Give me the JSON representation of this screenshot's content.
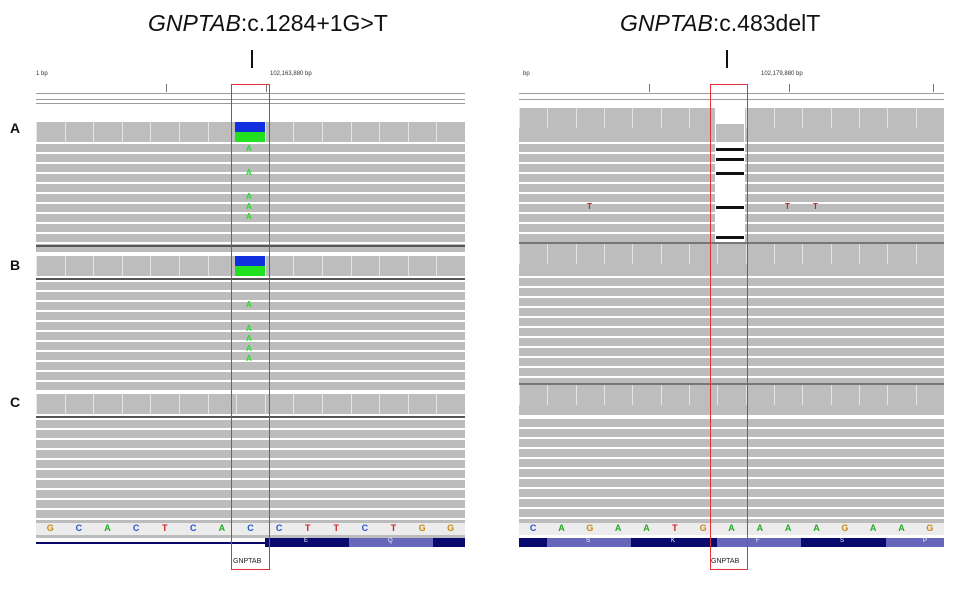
{
  "titles": {
    "left": {
      "gene": "GNPTAB",
      "variant": ":c.1284+1G>T"
    },
    "right": {
      "gene": "GNPTAB",
      "variant": ":c.483delT"
    }
  },
  "row_labels": [
    "A",
    "B",
    "C"
  ],
  "left_panel": {
    "ruler_left": "1 bp",
    "ruler_center": "102,163,880 bp",
    "sequence": [
      "G",
      "C",
      "A",
      "C",
      "T",
      "C",
      "A",
      "C",
      "C",
      "T",
      "T",
      "C",
      "T",
      "G",
      "G"
    ],
    "amino_acids": [
      "E",
      "Q"
    ],
    "gene_label": "GNPTAB",
    "read_mismatch": "A"
  },
  "right_panel": {
    "ruler_left": "bp",
    "ruler_center": "102,179,880 bp",
    "sequence": [
      "C",
      "A",
      "G",
      "A",
      "A",
      "T",
      "G",
      "A",
      "A",
      "A",
      "A",
      "G",
      "A",
      "A",
      "G"
    ],
    "amino_acids": [
      "S",
      "K",
      "F",
      "S",
      "P"
    ],
    "gene_label": "GNPTAB",
    "read_mismatch": "T"
  },
  "colors": {
    "A": "#22aa22",
    "C": "#2255cc",
    "G": "#cc8811",
    "T": "#cc2222",
    "highlight": "#e0303a",
    "ins_blue": "#1030e0",
    "ins_green": "#20e020",
    "gene_dark": "#0a0a6e",
    "gene_light": "#6666bb"
  }
}
